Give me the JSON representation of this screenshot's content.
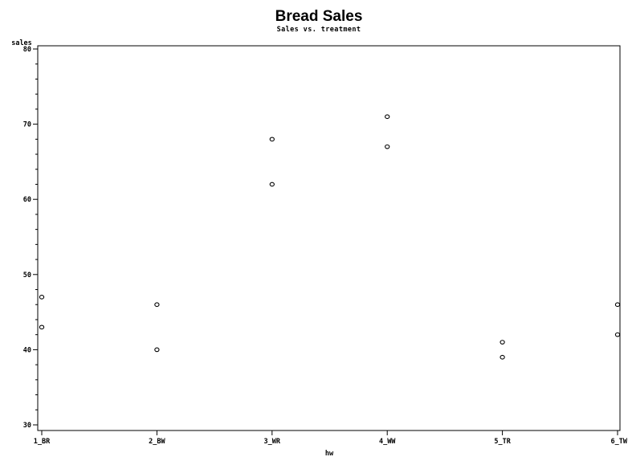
{
  "chart_data": {
    "type": "scatter",
    "title": "Bread Sales",
    "subtitle": "Sales vs. treatment",
    "xlabel": "hw",
    "ylabel": "sales",
    "categories": [
      "1_BR",
      "2_BW",
      "3_WR",
      "4_WW",
      "5_TR",
      "6_TW"
    ],
    "ylim": [
      30,
      80
    ],
    "yticks": [
      30,
      40,
      50,
      60,
      70,
      80
    ],
    "y_minor_step": 2,
    "grid": false,
    "marker": "open-circle",
    "points": [
      {
        "x": "1_BR",
        "y": 47
      },
      {
        "x": "1_BR",
        "y": 43
      },
      {
        "x": "2_BW",
        "y": 46
      },
      {
        "x": "2_BW",
        "y": 40
      },
      {
        "x": "3_WR",
        "y": 68
      },
      {
        "x": "3_WR",
        "y": 62
      },
      {
        "x": "4_WW",
        "y": 71
      },
      {
        "x": "4_WW",
        "y": 67
      },
      {
        "x": "5_TR",
        "y": 41
      },
      {
        "x": "5_TR",
        "y": 39
      },
      {
        "x": "6_TW",
        "y": 46
      },
      {
        "x": "6_TW",
        "y": 42
      }
    ]
  }
}
